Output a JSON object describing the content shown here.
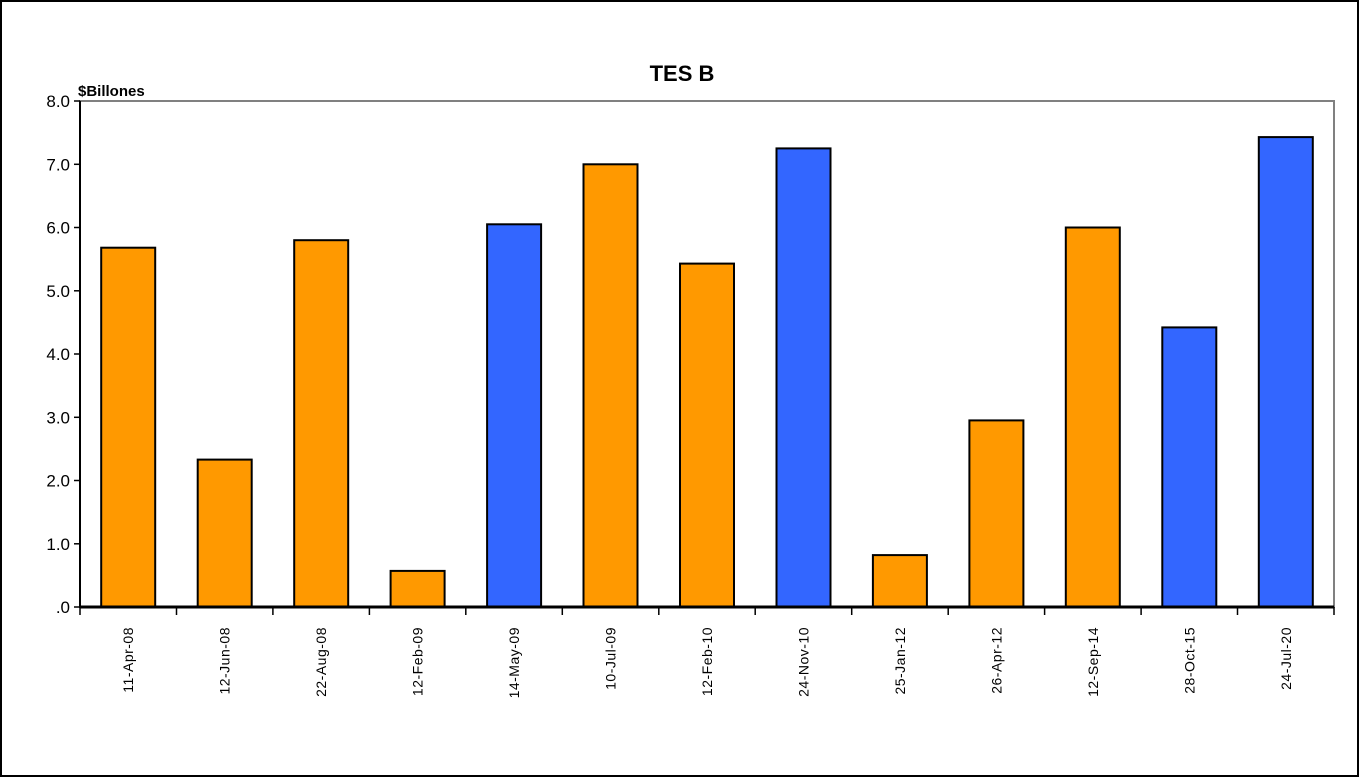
{
  "chart_data": {
    "type": "bar",
    "title": "TES B",
    "ylabel": "$Billones",
    "xlabel": "",
    "ylim": [
      0,
      8
    ],
    "yticks": [
      ".0",
      "1.0",
      "2.0",
      "3.0",
      "4.0",
      "5.0",
      "6.0",
      "7.0",
      "8.0"
    ],
    "categories": [
      "11-Apr-08",
      "12-Jun-08",
      "22-Aug-08",
      "12-Feb-09",
      "14-May-09",
      "10-Jul-09",
      "12-Feb-10",
      "24-Nov-10",
      "25-Jan-12",
      "26-Apr-12",
      "12-Sep-14",
      "28-Oct-15",
      "24-Jul-20"
    ],
    "values": [
      5.68,
      2.33,
      5.8,
      0.57,
      6.05,
      7.0,
      5.43,
      7.25,
      0.82,
      2.95,
      6.0,
      4.42,
      7.43
    ],
    "bar_colors": [
      "#ff9900",
      "#ff9900",
      "#ff9900",
      "#ff9900",
      "#3366ff",
      "#ff9900",
      "#ff9900",
      "#3366ff",
      "#ff9900",
      "#ff9900",
      "#ff9900",
      "#3366ff",
      "#3366ff"
    ],
    "grid": false,
    "legend": "none"
  }
}
